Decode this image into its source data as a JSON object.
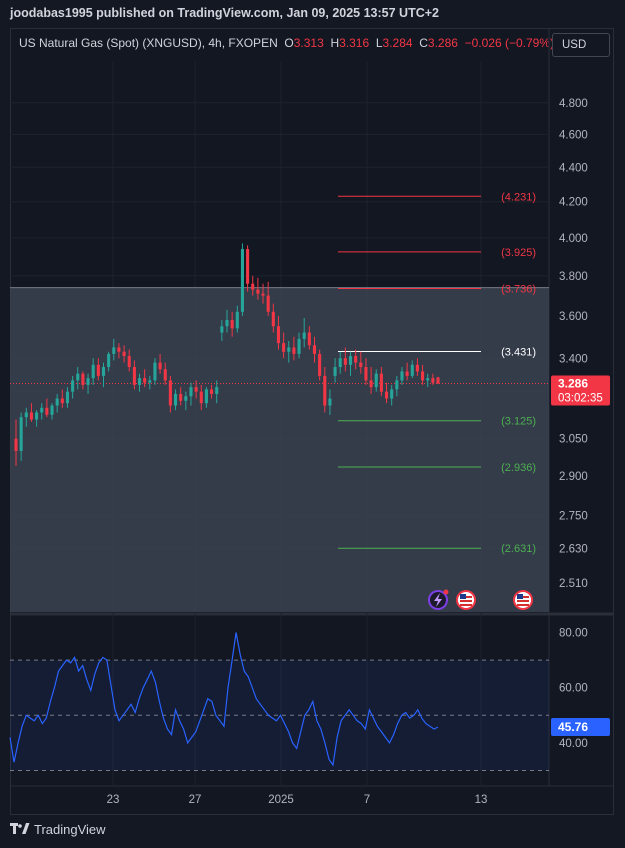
{
  "header": {
    "published": "joodabas1995 published on TradingView.com, Jan 09, 2025 13:57 UTC+2"
  },
  "symbol_bar": {
    "name": "US Natural Gas (Spot) (XNGUSD), 4h, FXOPEN",
    "o_label": "O",
    "o_value": "3.313",
    "h_label": "H",
    "h_value": "3.316",
    "l_label": "L",
    "l_value": "3.284",
    "c_label": "C",
    "c_value": "3.286",
    "change": "−0.026 (−0.79%)",
    "ellipsis": "..."
  },
  "currency": "USD",
  "footer": {
    "brand": "TradingView"
  },
  "colors": {
    "up": "#26a69a",
    "down": "#f23645",
    "rsi": "#2962ff",
    "fib_red": "#f23645",
    "fib_green": "#4caf50",
    "zone": "#3b4351"
  },
  "chart_data": [
    {
      "type": "candlestick",
      "ylim": [
        2.45,
        4.95
      ],
      "price_ticks": [
        "4.800",
        "4.600",
        "4.400",
        "4.200",
        "4.000",
        "3.800",
        "3.600",
        "3.400",
        "3.250",
        "3.050",
        "2.900",
        "2.750",
        "2.630",
        "2.510"
      ],
      "x_ticks": [
        "23",
        "27",
        "2025",
        "7",
        "13"
      ],
      "last_price": "3.286",
      "countdown": "03:02:35",
      "zone": [
        3.0,
        3.74
      ],
      "levels": [
        {
          "label": "(4.231)",
          "value": 4.231,
          "color": "red"
        },
        {
          "label": "(3.925)",
          "value": 3.925,
          "color": "red"
        },
        {
          "label": "(3.736)",
          "value": 3.736,
          "color": "red"
        },
        {
          "label": "(3.431)",
          "value": 3.431,
          "color": "white"
        },
        {
          "label": "(3.125)",
          "value": 3.125,
          "color": "green"
        },
        {
          "label": "(2.936)",
          "value": 2.936,
          "color": "green"
        },
        {
          "label": "(2.631)",
          "value": 2.631,
          "color": "green"
        }
      ],
      "candles": [
        [
          3.05,
          3.13,
          2.94,
          3.0
        ],
        [
          3.0,
          3.16,
          2.96,
          3.14
        ],
        [
          3.14,
          3.18,
          3.1,
          3.16
        ],
        [
          3.16,
          3.2,
          3.12,
          3.13
        ],
        [
          3.13,
          3.17,
          3.1,
          3.16
        ],
        [
          3.16,
          3.2,
          3.13,
          3.18
        ],
        [
          3.18,
          3.22,
          3.14,
          3.15
        ],
        [
          3.15,
          3.2,
          3.13,
          3.19
        ],
        [
          3.19,
          3.24,
          3.16,
          3.22
        ],
        [
          3.22,
          3.26,
          3.18,
          3.2
        ],
        [
          3.2,
          3.27,
          3.18,
          3.25
        ],
        [
          3.25,
          3.32,
          3.22,
          3.3
        ],
        [
          3.3,
          3.36,
          3.26,
          3.33
        ],
        [
          3.33,
          3.34,
          3.26,
          3.28
        ],
        [
          3.28,
          3.33,
          3.24,
          3.31
        ],
        [
          3.31,
          3.4,
          3.28,
          3.37
        ],
        [
          3.37,
          3.4,
          3.3,
          3.32
        ],
        [
          3.32,
          3.38,
          3.27,
          3.36
        ],
        [
          3.36,
          3.43,
          3.34,
          3.42
        ],
        [
          3.42,
          3.49,
          3.39,
          3.45
        ],
        [
          3.45,
          3.47,
          3.4,
          3.43
        ],
        [
          3.43,
          3.46,
          3.38,
          3.41
        ],
        [
          3.41,
          3.44,
          3.34,
          3.36
        ],
        [
          3.36,
          3.39,
          3.26,
          3.28
        ],
        [
          3.28,
          3.33,
          3.25,
          3.31
        ],
        [
          3.31,
          3.35,
          3.27,
          3.29
        ],
        [
          3.29,
          3.32,
          3.26,
          3.3
        ],
        [
          3.3,
          3.4,
          3.28,
          3.38
        ],
        [
          3.38,
          3.42,
          3.33,
          3.35
        ],
        [
          3.35,
          3.38,
          3.28,
          3.3
        ],
        [
          3.3,
          3.32,
          3.16,
          3.19
        ],
        [
          3.19,
          3.26,
          3.17,
          3.24
        ],
        [
          3.24,
          3.27,
          3.19,
          3.21
        ],
        [
          3.21,
          3.25,
          3.17,
          3.23
        ],
        [
          3.23,
          3.29,
          3.19,
          3.27
        ],
        [
          3.27,
          3.3,
          3.22,
          3.25
        ],
        [
          3.25,
          3.28,
          3.17,
          3.2
        ],
        [
          3.2,
          3.27,
          3.18,
          3.26
        ],
        [
          3.26,
          3.28,
          3.22,
          3.24
        ],
        [
          3.24,
          3.3,
          3.2,
          3.27
        ],
        [
          3.52,
          3.58,
          3.48,
          3.55
        ],
        [
          3.55,
          3.63,
          3.52,
          3.58
        ],
        [
          3.58,
          3.62,
          3.5,
          3.54
        ],
        [
          3.54,
          3.65,
          3.52,
          3.62
        ],
        [
          3.62,
          3.97,
          3.6,
          3.94
        ],
        [
          3.94,
          3.96,
          3.72,
          3.76
        ],
        [
          3.76,
          3.8,
          3.7,
          3.73
        ],
        [
          3.73,
          3.79,
          3.68,
          3.71
        ],
        [
          3.71,
          3.76,
          3.66,
          3.7
        ],
        [
          3.7,
          3.77,
          3.6,
          3.62
        ],
        [
          3.62,
          3.66,
          3.52,
          3.55
        ],
        [
          3.55,
          3.6,
          3.44,
          3.47
        ],
        [
          3.47,
          3.52,
          3.4,
          3.43
        ],
        [
          3.43,
          3.48,
          3.38,
          3.45
        ],
        [
          3.45,
          3.5,
          3.39,
          3.42
        ],
        [
          3.42,
          3.52,
          3.4,
          3.49
        ],
        [
          3.49,
          3.59,
          3.45,
          3.52
        ],
        [
          3.52,
          3.55,
          3.44,
          3.46
        ],
        [
          3.46,
          3.5,
          3.38,
          3.42
        ],
        [
          3.42,
          3.44,
          3.3,
          3.32
        ],
        [
          3.32,
          3.36,
          3.16,
          3.19
        ],
        [
          3.19,
          3.26,
          3.15,
          3.22
        ],
        [
          3.32,
          3.4,
          3.29,
          3.36
        ],
        [
          3.36,
          3.43,
          3.33,
          3.4
        ],
        [
          3.4,
          3.45,
          3.34,
          3.37
        ],
        [
          3.37,
          3.43,
          3.32,
          3.41
        ],
        [
          3.41,
          3.44,
          3.35,
          3.38
        ],
        [
          3.38,
          3.43,
          3.33,
          3.36
        ],
        [
          3.36,
          3.4,
          3.28,
          3.3
        ],
        [
          3.3,
          3.36,
          3.24,
          3.27
        ],
        [
          3.27,
          3.35,
          3.25,
          3.33
        ],
        [
          3.33,
          3.36,
          3.23,
          3.25
        ],
        [
          3.25,
          3.29,
          3.2,
          3.22
        ],
        [
          3.22,
          3.28,
          3.19,
          3.26
        ],
        [
          3.26,
          3.32,
          3.23,
          3.3
        ],
        [
          3.3,
          3.36,
          3.28,
          3.34
        ],
        [
          3.34,
          3.38,
          3.3,
          3.32
        ],
        [
          3.32,
          3.39,
          3.31,
          3.37
        ],
        [
          3.37,
          3.4,
          3.32,
          3.34
        ],
        [
          3.34,
          3.37,
          3.28,
          3.3
        ],
        [
          3.3,
          3.33,
          3.27,
          3.31
        ],
        [
          3.31,
          3.33,
          3.28,
          3.29
        ],
        [
          3.313,
          3.316,
          3.284,
          3.286
        ]
      ]
    },
    {
      "type": "line",
      "name": "RSI",
      "ylim": [
        28,
        82
      ],
      "y_ticks": [
        "80.00",
        "60.00",
        "40.00"
      ],
      "bands": [
        70,
        50,
        30
      ],
      "last_value": "45.76",
      "values": [
        42,
        33,
        40,
        46,
        50,
        49,
        48,
        50,
        47,
        49,
        55,
        60,
        66,
        68,
        70,
        69,
        71,
        66,
        68,
        63,
        59,
        65,
        69,
        71,
        70,
        61,
        52,
        48,
        50,
        52,
        54,
        51,
        56,
        60,
        63,
        66,
        62,
        55,
        49,
        45,
        43,
        52,
        48,
        45,
        40,
        42,
        44,
        48,
        52,
        56,
        55,
        50,
        48,
        46,
        60,
        70,
        80,
        72,
        66,
        64,
        60,
        56,
        54,
        52,
        50,
        49,
        48,
        50,
        47,
        44,
        40,
        38,
        44,
        50,
        52,
        55,
        48,
        45,
        40,
        34,
        32,
        42,
        48,
        50,
        52,
        50,
        48,
        47,
        45,
        52,
        49,
        46,
        44,
        42,
        40,
        43,
        47,
        50,
        51,
        49,
        50,
        52,
        49,
        47,
        46,
        45,
        45.76
      ]
    }
  ]
}
